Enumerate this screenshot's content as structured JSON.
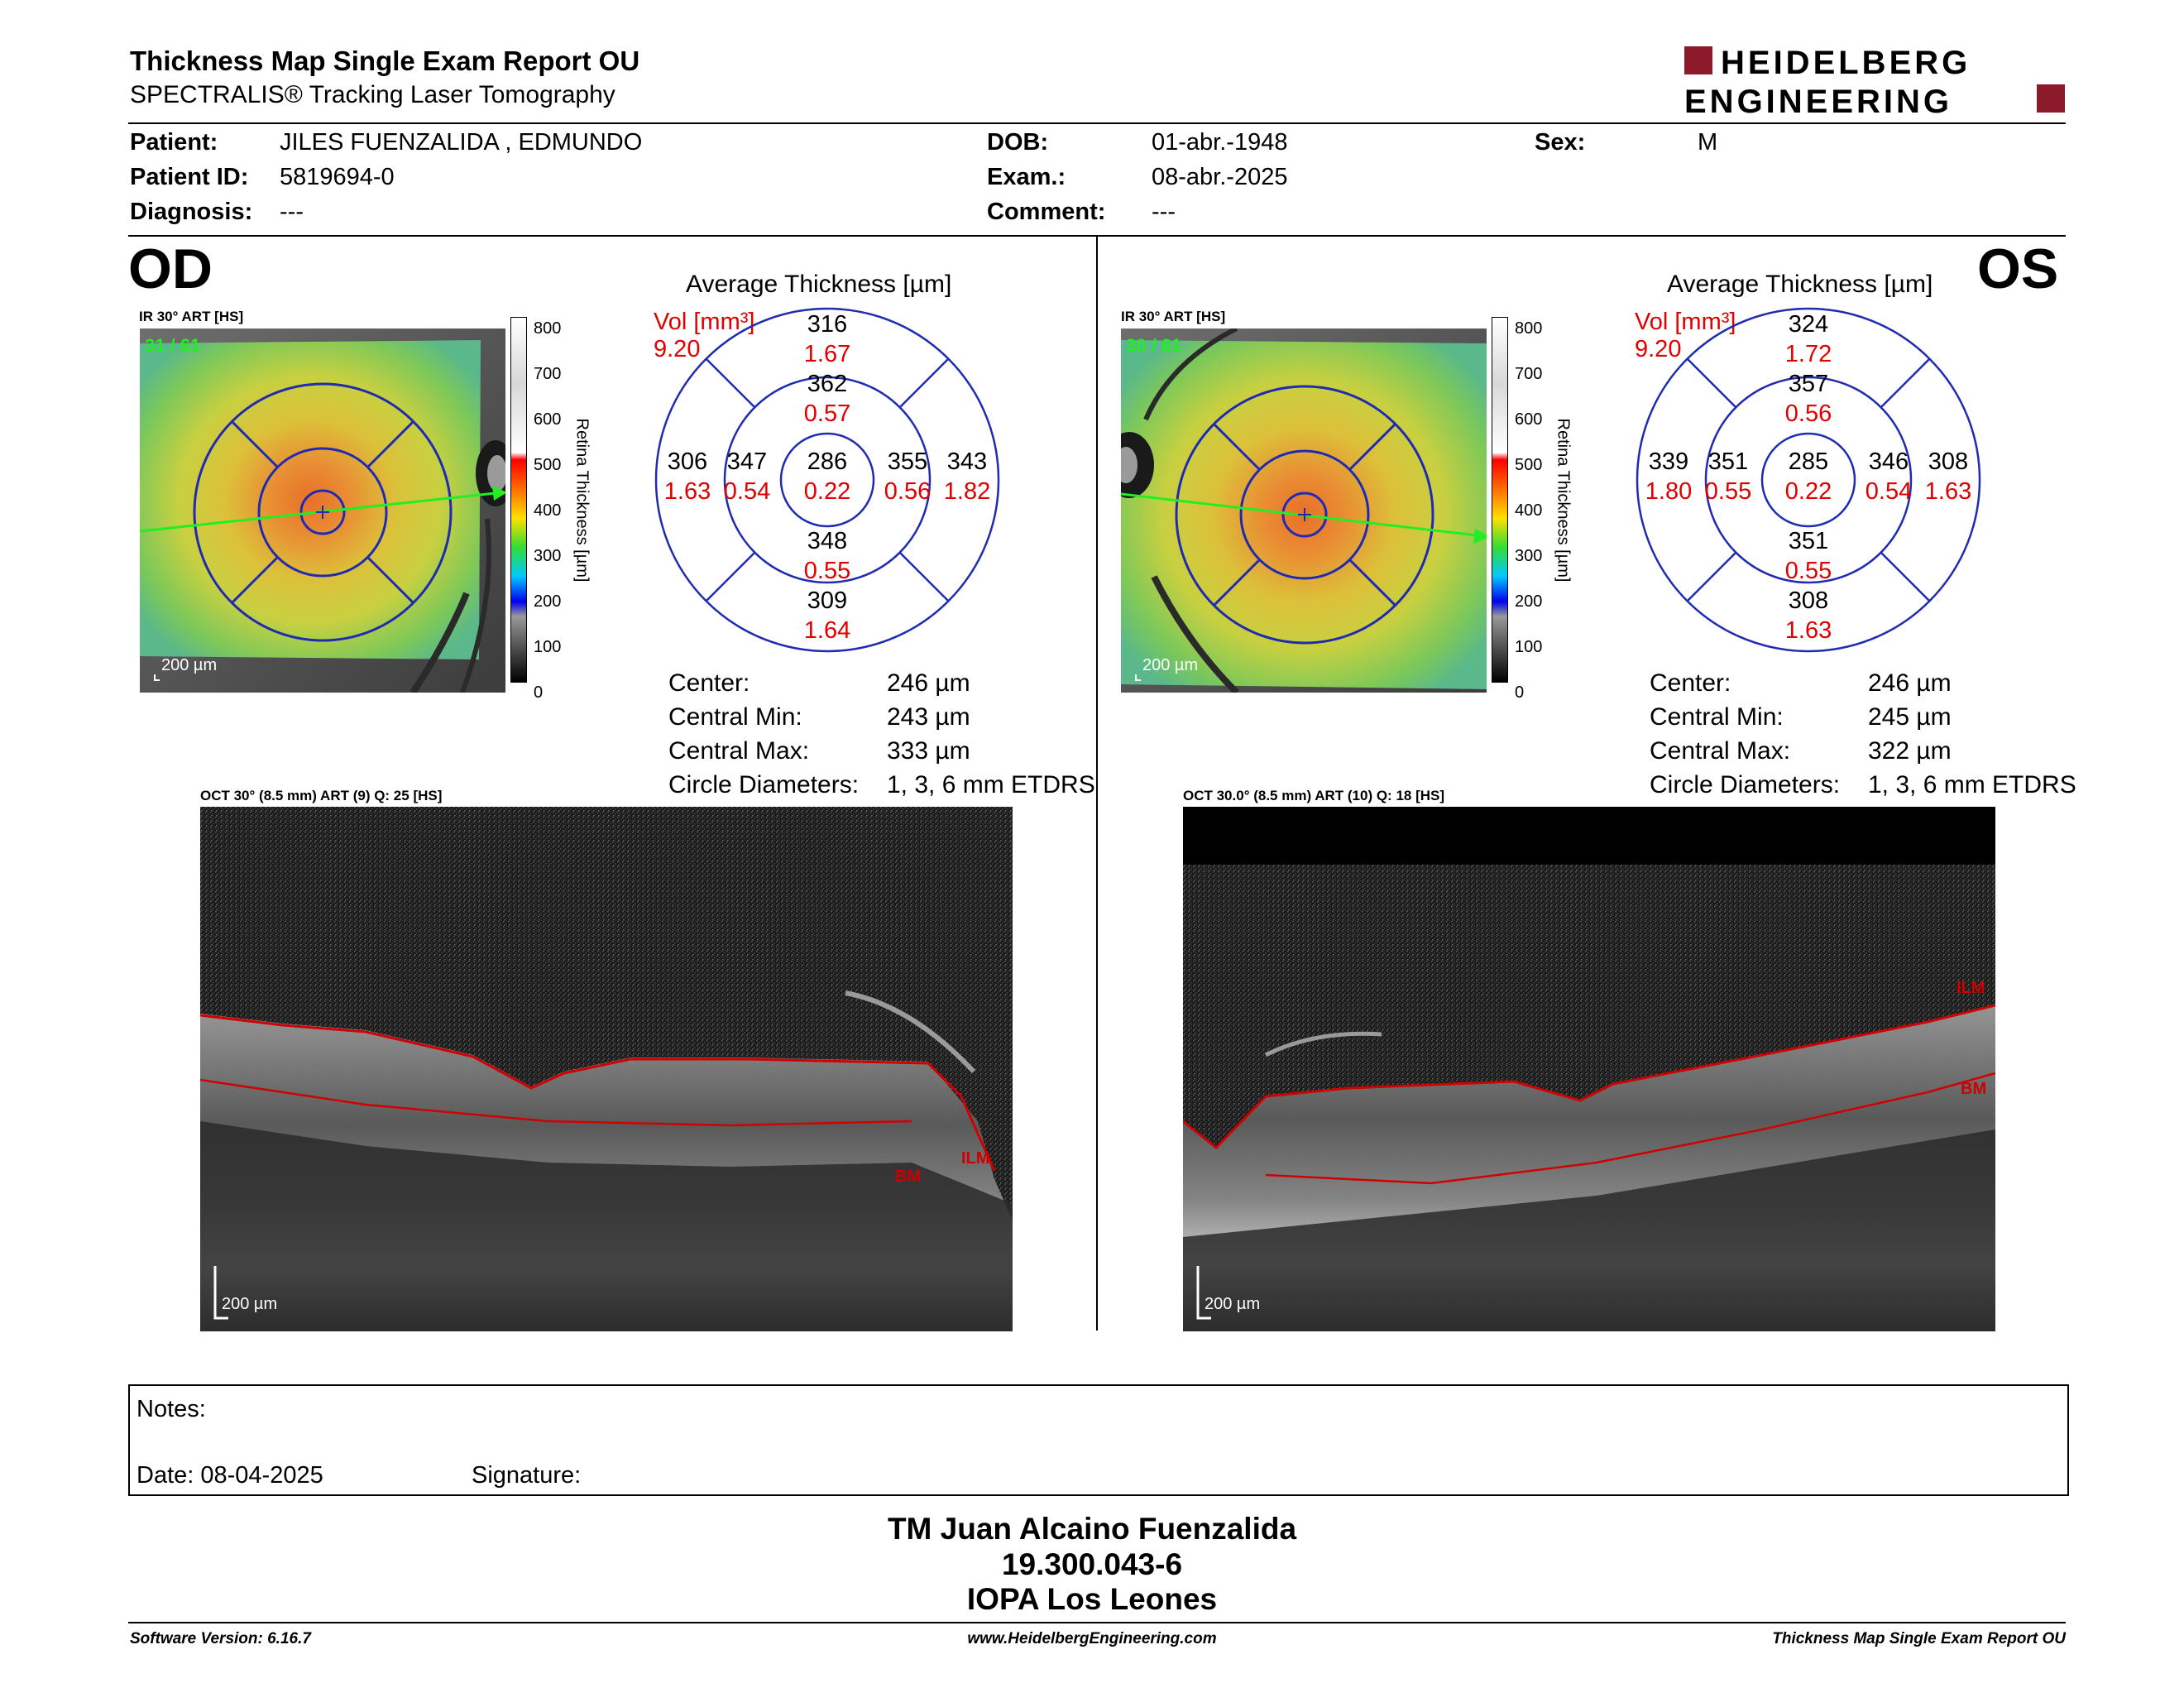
{
  "header": {
    "title": "Thickness Map Single Exam Report OU",
    "subtitle": "SPECTRALIS® Tracking Laser Tomography",
    "logo_line1": "HEIDELBERG",
    "logo_line2": "ENGINEERING",
    "logo_color": "#8b1a2b"
  },
  "patient": {
    "patient_label": "Patient:",
    "patient_value": "JILES FUENZALIDA , EDMUNDO",
    "id_label": "Patient ID:",
    "id_value": "5819694-0",
    "diagnosis_label": "Diagnosis:",
    "diagnosis_value": "---",
    "dob_label": "DOB:",
    "dob_value": "01-abr.-1948",
    "exam_label": "Exam.:",
    "exam_value": "08-abr.-2025",
    "comment_label": "Comment:",
    "comment_value": "---",
    "sex_label": "Sex:",
    "sex_value": "M"
  },
  "od": {
    "eye_label": "OD",
    "ir_label": "IR 30° ART [HS]",
    "frame_counter": "31 / 61",
    "scale_label": "200 µm",
    "colorbar_ticks": [
      "800",
      "700",
      "600",
      "500",
      "400",
      "300",
      "200",
      "100",
      "0"
    ],
    "colorbar_title": "Retina Thickness [µm]",
    "avg_title": "Average Thickness [µm]",
    "vol_label": "Vol [mm³]",
    "vol_total": "9.20",
    "sectors": {
      "top_outer": "316",
      "top_outer_vol": "1.67",
      "top_inner": "362",
      "top_inner_vol": "0.57",
      "nasal_outer": "306",
      "nasal_outer_vol": "1.63",
      "nasal_inner": "347",
      "nasal_inner_vol": "0.54",
      "center": "286",
      "center_vol": "0.22",
      "temp_inner": "355",
      "temp_inner_vol": "0.56",
      "temp_outer": "343",
      "temp_outer_vol": "1.82",
      "bottom_inner": "348",
      "bottom_inner_vol": "0.55",
      "bottom_outer": "309",
      "bottom_outer_vol": "1.64"
    },
    "stats": {
      "center_label": "Center:",
      "center_value": "246 µm",
      "min_label": "Central Min:",
      "min_value": "243 µm",
      "max_label": "Central Max:",
      "max_value": "333 µm",
      "diam_label": "Circle Diameters:",
      "diam_value": "1, 3, 6 mm ETDRS"
    },
    "oct_label": "OCT 30° (8.5 mm) ART (9) Q: 25 [HS]",
    "oct_scale": "200 µm",
    "ilm_label": "ILM",
    "bm_label": "BM"
  },
  "os": {
    "eye_label": "OS",
    "ir_label": "IR 30° ART [HS]",
    "frame_counter": "30 / 61",
    "scale_label": "200 µm",
    "colorbar_ticks": [
      "800",
      "700",
      "600",
      "500",
      "400",
      "300",
      "200",
      "100",
      "0"
    ],
    "colorbar_title": "Retina Thickness [µm]",
    "avg_title": "Average Thickness [µm]",
    "vol_label": "Vol [mm³]",
    "vol_total": "9.20",
    "sectors": {
      "top_outer": "324",
      "top_outer_vol": "1.72",
      "top_inner": "357",
      "top_inner_vol": "0.56",
      "nasal_outer": "339",
      "nasal_outer_vol": "1.80",
      "nasal_inner": "351",
      "nasal_inner_vol": "0.55",
      "center": "285",
      "center_vol": "0.22",
      "temp_inner": "346",
      "temp_inner_vol": "0.54",
      "temp_outer": "308",
      "temp_outer_vol": "1.63",
      "bottom_inner": "351",
      "bottom_inner_vol": "0.55",
      "bottom_outer": "308",
      "bottom_outer_vol": "1.63"
    },
    "stats": {
      "center_label": "Center:",
      "center_value": "246 µm",
      "min_label": "Central Min:",
      "min_value": "245 µm",
      "max_label": "Central Max:",
      "max_value": "322 µm",
      "diam_label": "Circle Diameters:",
      "diam_value": "1, 3, 6 mm ETDRS"
    },
    "oct_label": "OCT 30.0° (8.5 mm) ART (10) Q: 18 [HS]",
    "oct_scale": "200 µm",
    "ilm_label": "ILM",
    "bm_label": "BM"
  },
  "notes": {
    "notes_label": "Notes:",
    "date_label": "Date: 08-04-2025",
    "signature_label": "Signature:"
  },
  "signoff": {
    "name": "TM Juan Alcaino Fuenzalida",
    "id": "19.300.043-6",
    "place": "IOPA Los Leones"
  },
  "footer": {
    "software": "Software Version: 6.16.7",
    "website": "www.HeidelbergEngineering.com",
    "report": "Thickness Map Single Exam Report OU"
  },
  "colors": {
    "red_value": "#e00000",
    "grid_blue": "#1f2bb0",
    "scan_green": "#22ee22",
    "oct_red": "#d00000"
  }
}
